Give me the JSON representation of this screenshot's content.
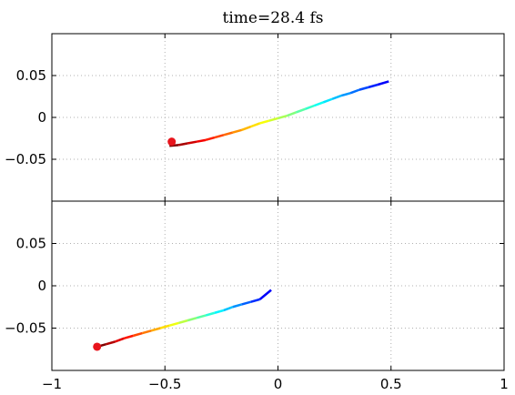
{
  "chart_data": {
    "type": "line",
    "title": "time=28.4 fs",
    "grid": true,
    "xlim": [
      -1,
      1
    ],
    "x_ticks": [
      "−1",
      "−0.5",
      "0",
      "0.5",
      "1"
    ],
    "x_tick_values": [
      -1,
      -0.5,
      0,
      0.5,
      1
    ],
    "panels": [
      {
        "name": "top",
        "ylim": [
          -0.1,
          0.1
        ],
        "y_ticks": [
          "0.05",
          "0",
          "−0.05"
        ],
        "y_tick_values": [
          0.05,
          0,
          -0.05
        ],
        "trajectory": {
          "points": [
            [
              -0.48,
              -0.034
            ],
            [
              -0.44,
              -0.033
            ],
            [
              -0.4,
              -0.031
            ],
            [
              -0.36,
              -0.029
            ],
            [
              -0.32,
              -0.027
            ],
            [
              -0.28,
              -0.024
            ],
            [
              -0.24,
              -0.021
            ],
            [
              -0.2,
              -0.018
            ],
            [
              -0.16,
              -0.015
            ],
            [
              -0.12,
              -0.011
            ],
            [
              -0.08,
              -0.007
            ],
            [
              -0.04,
              -0.004
            ],
            [
              0.0,
              -0.001
            ],
            [
              0.04,
              0.002
            ],
            [
              0.08,
              0.006
            ],
            [
              0.12,
              0.01
            ],
            [
              0.16,
              0.014
            ],
            [
              0.2,
              0.018
            ],
            [
              0.24,
              0.022
            ],
            [
              0.28,
              0.026
            ],
            [
              0.32,
              0.029
            ],
            [
              0.36,
              0.033
            ],
            [
              0.4,
              0.036
            ],
            [
              0.44,
              0.039
            ],
            [
              0.49,
              0.043
            ]
          ],
          "dashed": true
        },
        "marker": {
          "x": -0.47,
          "y": -0.029,
          "color": "#e8141c"
        }
      },
      {
        "name": "bottom",
        "ylim": [
          -0.1,
          0.1
        ],
        "y_ticks": [
          "0.05",
          "0",
          "−0.05"
        ],
        "y_tick_values": [
          0.05,
          0,
          -0.05
        ],
        "trajectory": {
          "points": [
            [
              -0.8,
              -0.072
            ],
            [
              -0.76,
              -0.069
            ],
            [
              -0.72,
              -0.066
            ],
            [
              -0.68,
              -0.062
            ],
            [
              -0.64,
              -0.059
            ],
            [
              -0.6,
              -0.056
            ],
            [
              -0.56,
              -0.053
            ],
            [
              -0.52,
              -0.05
            ],
            [
              -0.48,
              -0.047
            ],
            [
              -0.44,
              -0.044
            ],
            [
              -0.4,
              -0.041
            ],
            [
              -0.36,
              -0.038
            ],
            [
              -0.32,
              -0.035
            ],
            [
              -0.28,
              -0.032
            ],
            [
              -0.24,
              -0.029
            ],
            [
              -0.2,
              -0.025
            ],
            [
              -0.16,
              -0.022
            ],
            [
              -0.12,
              -0.019
            ],
            [
              -0.08,
              -0.016
            ],
            [
              -0.03,
              -0.005
            ]
          ],
          "dashed": false
        },
        "marker": {
          "x": -0.8,
          "y": -0.072,
          "color": "#e8141c"
        }
      }
    ],
    "colormap": "jet",
    "colormap_direction": "red at marker end, blue at far end"
  }
}
